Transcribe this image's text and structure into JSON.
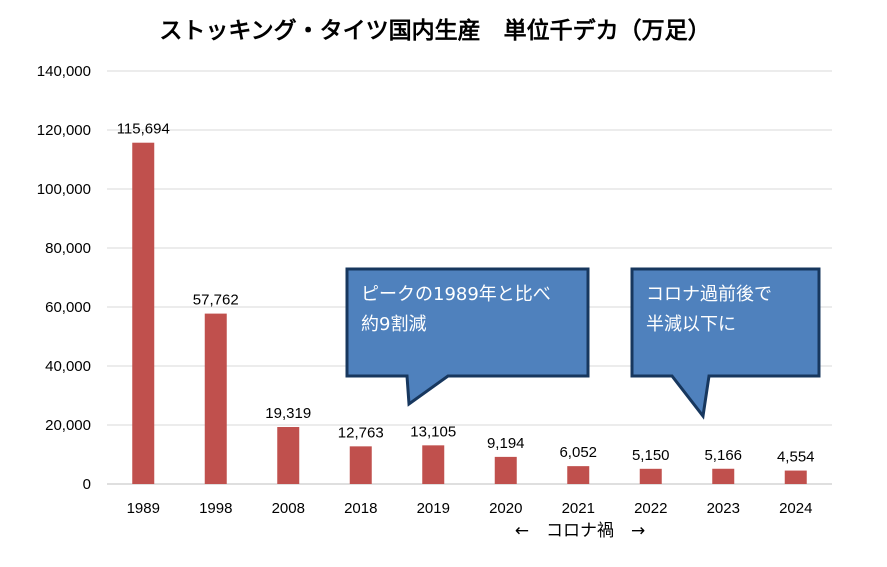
{
  "chart_data": {
    "type": "bar",
    "title": "ストッキング・タイツ国内生産　単位千デカ（万足）",
    "categories": [
      "1989",
      "1998",
      "2008",
      "2018",
      "2019",
      "2020",
      "2021",
      "2022",
      "2023",
      "2024"
    ],
    "values": [
      115694,
      57762,
      19319,
      12763,
      13105,
      9194,
      6052,
      5150,
      5166,
      4554
    ],
    "data_labels": [
      "115,694",
      "57,762",
      "19,319",
      "12,763",
      "13,105",
      "9,194",
      "6,052",
      "5,150",
      "5,166",
      "4,554"
    ],
    "y_ticks": [
      "0",
      "20,000",
      "40,000",
      "60,000",
      "80,000",
      "100,000",
      "120,000",
      "140,000"
    ],
    "ylim": [
      0,
      140000
    ],
    "grid": true,
    "bar_color": "#c0504d",
    "annotations": [
      {
        "text_line1": "ピークの1989年と比べ",
        "text_line2": "約9割減"
      },
      {
        "text_line1": "コロナ過前後で",
        "text_line2": "半減以下に"
      }
    ],
    "range_note": "←　コロナ禍　→"
  },
  "colors": {
    "callout_fill": "#4f81bd",
    "callout_stroke": "#17375e",
    "grid": "#d9d9d9"
  }
}
